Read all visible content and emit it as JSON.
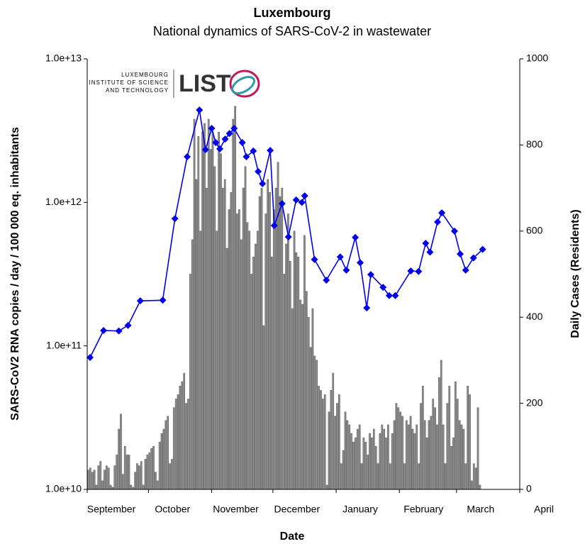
{
  "chart_data": {
    "type": "combo",
    "title": "Luxembourg",
    "subtitle": "National dynamics of SARS-CoV-2 in wastewater",
    "x_label": "Date",
    "y_label": "SARS-CoV2 RNA copies / day  / 100 000 eq. inhabitants",
    "y2_label": "Daily Cases (Residents)",
    "annotations": [
      "LUXEMBOURG",
      "INSTITUTE OF SCIENCE",
      "AND TECHNOLOGY",
      "LIST"
    ],
    "xlim": [
      0,
      212
    ],
    "xticks": [
      {
        "value": 0,
        "label": "September"
      },
      {
        "value": 30,
        "label": "October"
      },
      {
        "value": 61,
        "label": "November"
      },
      {
        "value": 91,
        "label": "December"
      },
      {
        "value": 122,
        "label": "January"
      },
      {
        "value": 153,
        "label": "February"
      },
      {
        "value": 181,
        "label": "March"
      },
      {
        "value": 212,
        "label": "April"
      }
    ],
    "log_y": true,
    "ylim": [
      10000000000.0,
      10000000000000.0
    ],
    "yticks": [
      {
        "value": 10000000000.0,
        "label": "1.0e+10"
      },
      {
        "value": 100000000000.0,
        "label": "1.0e+11"
      },
      {
        "value": 1000000000000.0,
        "label": "1.0e+12"
      },
      {
        "value": 10000000000000.0,
        "label": "1.0e+13"
      }
    ],
    "y2lim": [
      0,
      1000
    ],
    "y2ticks": [
      0,
      200,
      400,
      600,
      800,
      1000
    ],
    "series": [
      {
        "type": "line",
        "color": "#0000ee",
        "x": [
          1.4,
          8,
          15.5,
          20,
          26,
          37,
          43,
          49,
          55,
          58,
          61,
          63,
          65,
          67.6,
          69.7,
          72,
          76,
          78,
          81.4,
          83.8,
          85.9,
          89.7,
          91.7,
          95.5,
          98.6,
          102.4,
          105.2,
          106.6,
          111.4,
          117.2,
          124,
          127,
          131.4,
          133.8,
          137,
          139,
          145,
          148,
          151,
          158.6,
          162.4,
          165.9,
          168,
          171.7,
          173.8,
          180,
          182.8,
          185.5,
          189.3,
          193.8
        ],
        "values": [
          83000000000.0,
          128000000000.0,
          127000000000.0,
          139000000000.0,
          206000000000.0,
          208000000000.0,
          770000000000.0,
          2080000000000.0,
          4400000000000.0,
          2330000000000.0,
          3280000000000.0,
          2610000000000.0,
          2360000000000.0,
          2760000000000.0,
          3020000000000.0,
          3280000000000.0,
          2610000000000.0,
          2080000000000.0,
          2280000000000.0,
          1640000000000.0,
          1350000000000.0,
          2300000000000.0,
          690000000000.0,
          980000000000.0,
          575000000000.0,
          1040000000000.0,
          1000000000000.0,
          1110000000000.0,
          400000000000.0,
          287000000000.0,
          417000000000.0,
          337000000000.0,
          570000000000.0,
          380000000000.0,
          184000000000.0,
          314000000000.0,
          256000000000.0,
          224000000000.0,
          224000000000.0,
          333000000000.0,
          330000000000.0,
          519000000000.0,
          450000000000.0,
          730000000000.0,
          845000000000.0,
          630000000000.0,
          437000000000.0,
          337000000000.0,
          410000000000.0,
          470000000000.0
        ]
      },
      {
        "type": "bar",
        "axis": "y2",
        "color": "#8c8c8c",
        "x": [
          0,
          1,
          2,
          3,
          4,
          5,
          6,
          7,
          8,
          9,
          10,
          11,
          12,
          13,
          14,
          15,
          16,
          17,
          18,
          19,
          20,
          21,
          22,
          23,
          24,
          25,
          26,
          27,
          28,
          29,
          30,
          31,
          32,
          33,
          34,
          35,
          36,
          37,
          38,
          39,
          40,
          41,
          42,
          43,
          44,
          45,
          46,
          47,
          48,
          49,
          50,
          51,
          52,
          53,
          54,
          55,
          56,
          57,
          58,
          59,
          60,
          61,
          62,
          63,
          64,
          65,
          66,
          67,
          68,
          69,
          70,
          71,
          72,
          73,
          74,
          75,
          76,
          77,
          78,
          79,
          80,
          81,
          82,
          83,
          84,
          85,
          86,
          87,
          88,
          89,
          90,
          91,
          92,
          93,
          94,
          95,
          96,
          97,
          98,
          99,
          100,
          101,
          102,
          103,
          104,
          105,
          106,
          107,
          108,
          109,
          110,
          111,
          112,
          113,
          114,
          115,
          116,
          117,
          118,
          119,
          120,
          121,
          122,
          123,
          124,
          125,
          126,
          127,
          128,
          129,
          130,
          131,
          132,
          133,
          134,
          135,
          136,
          137,
          138,
          139,
          140,
          141,
          142,
          143,
          144,
          145,
          146,
          147,
          148,
          149,
          150,
          151,
          152,
          153,
          154,
          155,
          156,
          157,
          158,
          159,
          160,
          161,
          162,
          163,
          164,
          165,
          166,
          167,
          168,
          169,
          170,
          171,
          172,
          173,
          174,
          175,
          176,
          177,
          178,
          179,
          180,
          181,
          182,
          183,
          184,
          185,
          186,
          187,
          188,
          189,
          190,
          191,
          192
        ],
        "values": [
          45,
          50,
          40,
          45,
          10,
          55,
          65,
          20,
          45,
          55,
          50,
          10,
          5,
          55,
          80,
          140,
          175,
          35,
          100,
          80,
          80,
          10,
          5,
          40,
          60,
          55,
          65,
          10,
          70,
          80,
          85,
          95,
          100,
          40,
          20,
          110,
          130,
          140,
          160,
          170,
          60,
          70,
          190,
          210,
          220,
          240,
          250,
          270,
          200,
          210,
          500,
          580,
          860,
          720,
          820,
          600,
          830,
          850,
          700,
          860,
          790,
          830,
          750,
          600,
          830,
          780,
          700,
          720,
          560,
          650,
          690,
          860,
          890,
          640,
          650,
          580,
          700,
          750,
          620,
          600,
          500,
          540,
          570,
          600,
          680,
          700,
          380,
          640,
          720,
          690,
          540,
          650,
          700,
          760,
          680,
          700,
          500,
          570,
          640,
          530,
          420,
          600,
          550,
          540,
          440,
          430,
          590,
          460,
          400,
          330,
          420,
          310,
          300,
          240,
          230,
          210,
          220,
          10,
          180,
          230,
          270,
          170,
          200,
          220,
          60,
          90,
          180,
          160,
          150,
          130,
          110,
          120,
          140,
          150,
          60,
          120,
          110,
          80,
          130,
          120,
          140,
          100,
          60,
          130,
          150,
          140,
          120,
          150,
          60,
          130,
          160,
          200,
          190,
          180,
          170,
          60,
          160,
          150,
          170,
          140,
          130,
          150,
          60,
          200,
          240,
          160,
          120,
          160,
          170,
          210,
          190,
          150,
          260,
          300,
          150,
          60,
          200,
          240,
          100,
          120,
          250,
          210,
          160,
          150,
          140,
          60,
          240,
          220,
          20,
          60,
          50,
          190,
          10
        ]
      }
    ]
  }
}
